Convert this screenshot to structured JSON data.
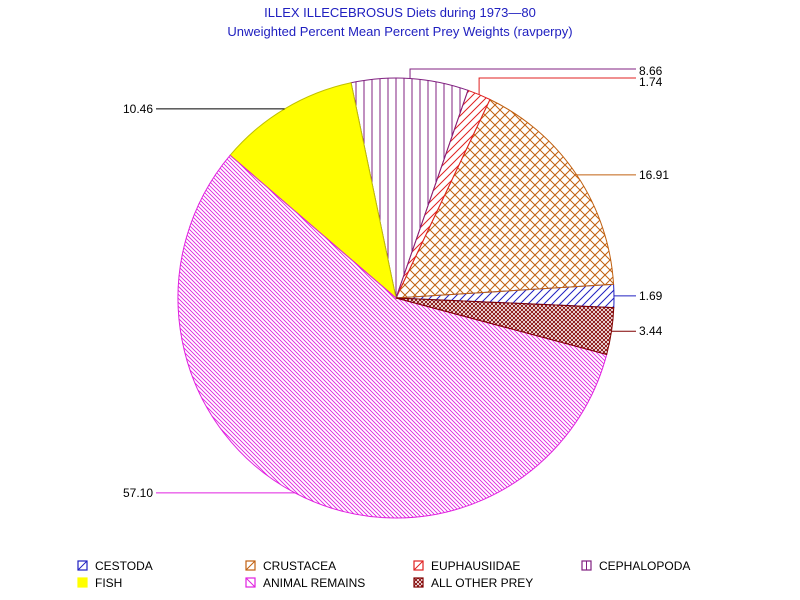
{
  "chart_data": {
    "type": "pie",
    "title": "ILLEX ILLECEBROSUS Diets during 1973—80",
    "subtitle": "Unweighted Percent Mean Percent Prey  Weights (ravperpy)",
    "slices": [
      {
        "name": "CESTODA",
        "value": 1.69,
        "label": "1.69",
        "color": "#2020c0",
        "pattern": "diag-up"
      },
      {
        "name": "CRUSTACEA",
        "value": 16.91,
        "label": "16.91",
        "color": "#c06010",
        "pattern": "crosshatch"
      },
      {
        "name": "EUPHAUSIIDAE",
        "value": 1.74,
        "label": "1.74",
        "color": "#e02020",
        "pattern": "diag-up"
      },
      {
        "name": "CEPHALOPODA",
        "value": 8.66,
        "label": "8.66",
        "color": "#802080",
        "pattern": "vertical"
      },
      {
        "name": "FISH",
        "value": 10.46,
        "label": "10.46",
        "color": "#ffff00",
        "pattern": "solid"
      },
      {
        "name": "ANIMAL REMAINS",
        "value": 57.1,
        "label": "57.10",
        "color": "#e020e0",
        "pattern": "diag-down"
      },
      {
        "name": "ALL OTHER PREY",
        "value": 3.44,
        "label": "3.44",
        "color": "#800000",
        "pattern": "dense-cross"
      }
    ],
    "legend": {
      "placement": "bottom",
      "rows": [
        [
          "CESTODA",
          "CRUSTACEA",
          "EUPHAUSIIDAE",
          "CEPHALOPODA"
        ],
        [
          "FISH",
          "ANIMAL REMAINS",
          "ALL OTHER PREY"
        ]
      ]
    }
  }
}
